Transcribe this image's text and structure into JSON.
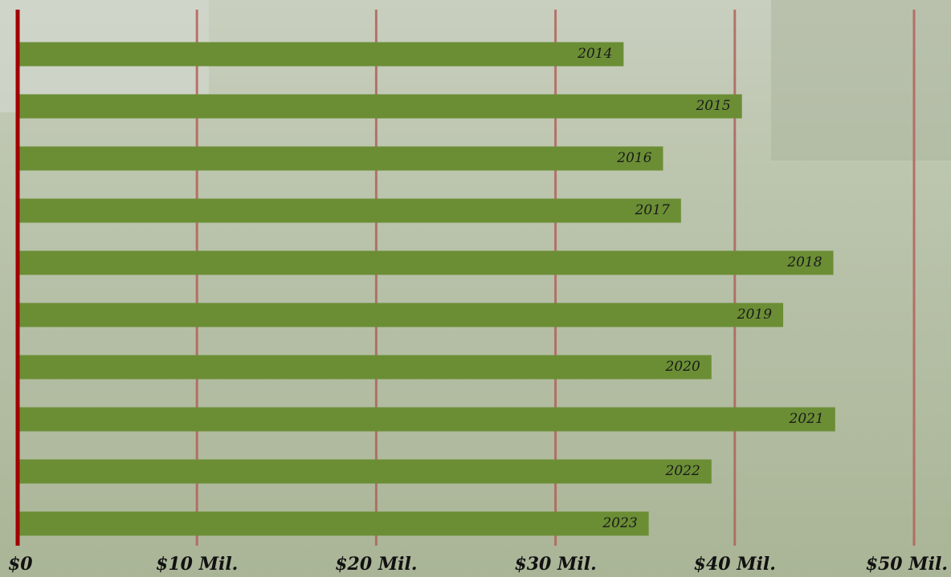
{
  "chart_data": {
    "type": "bar",
    "orientation": "horizontal",
    "categories": [
      "2014",
      "2015",
      "2016",
      "2017",
      "2018",
      "2019",
      "2020",
      "2021",
      "2022",
      "2023"
    ],
    "values": [
      33.8,
      40.4,
      36.0,
      37.0,
      45.5,
      42.7,
      38.7,
      45.6,
      38.7,
      35.2
    ],
    "color": "#6b8e35",
    "xlim": [
      0,
      50
    ],
    "xticks": [
      {
        "value": 0,
        "label": "$0"
      },
      {
        "value": 10,
        "label": "$10 Mil."
      },
      {
        "value": 20,
        "label": "$20 Mil."
      },
      {
        "value": 30,
        "label": "$30 Mil."
      },
      {
        "value": 40,
        "label": "$40 Mil."
      },
      {
        "value": 50,
        "label": "$50 Mil."
      }
    ],
    "grid": true
  }
}
